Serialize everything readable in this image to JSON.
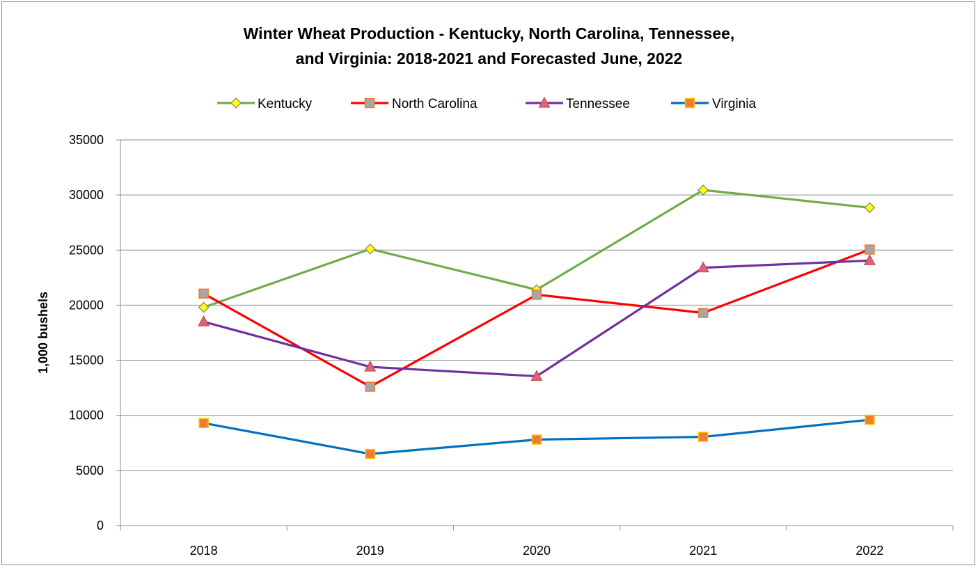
{
  "chart_data": {
    "type": "line",
    "title_line1": "Winter Wheat Production - Kentucky, North Carolina, Tennessee,",
    "title_line2": "and Virginia: 2018-2021 and Forecasted June, 2022",
    "xlabel": "",
    "ylabel": "1,000 bushels",
    "categories": [
      "2018",
      "2019",
      "2020",
      "2021",
      "2022"
    ],
    "ylim": [
      0,
      35000
    ],
    "yticks": [
      "0",
      "5000",
      "10000",
      "15000",
      "20000",
      "25000",
      "30000",
      "35000"
    ],
    "grid": true,
    "legend_position": "top",
    "series": [
      {
        "name": "Kentucky",
        "values": [
          19800,
          25100,
          21400,
          30450,
          28850
        ],
        "color": "#70ad47",
        "marker": "diamond",
        "marker_fill": "#ffff00",
        "marker_stroke": "#7f7f7f"
      },
      {
        "name": "North Carolina",
        "values": [
          21050,
          12600,
          20950,
          19300,
          25050
        ],
        "color": "#ff0000",
        "marker": "square",
        "marker_fill": "#a6a6a6",
        "marker_stroke": "#ed7d31"
      },
      {
        "name": "Tennessee",
        "values": [
          18500,
          14400,
          13550,
          23400,
          24050
        ],
        "color": "#7030a0",
        "marker": "triangle",
        "marker_fill": "#e06080",
        "marker_stroke": "#c0504d"
      },
      {
        "name": "Virginia",
        "values": [
          9300,
          6500,
          7800,
          8050,
          9600
        ],
        "color": "#0070c0",
        "marker": "square",
        "marker_fill": "#ed7d31",
        "marker_stroke": "#ffc000"
      }
    ]
  }
}
